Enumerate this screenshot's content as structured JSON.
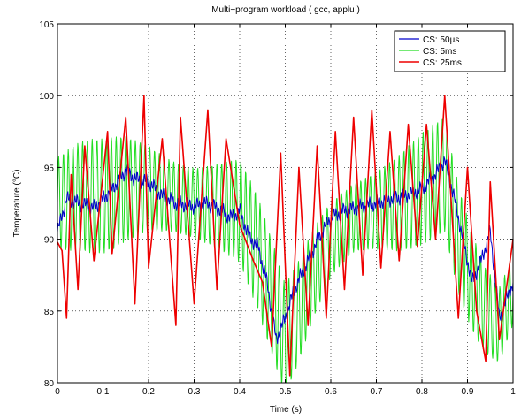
{
  "chart_data": {
    "type": "line",
    "title": "Multi−program workload ( gcc, applu )",
    "xlabel": "Time (s)",
    "ylabel": "Temperature (°C)",
    "xlim": [
      0,
      1
    ],
    "ylim": [
      80,
      105
    ],
    "x_ticks": [
      "0",
      "0.1",
      "0.2",
      "0.3",
      "0.4",
      "0.5",
      "0.6",
      "0.7",
      "0.8",
      "0.9",
      "1"
    ],
    "y_ticks": [
      "80",
      "85",
      "90",
      "95",
      "100",
      "105"
    ],
    "grid": "dotted",
    "legend_position": "top-right",
    "series": [
      {
        "name": "CS: 50µs",
        "color": "#0000cc",
        "x": [
          0,
          0.02,
          0.05,
          0.08,
          0.1,
          0.12,
          0.15,
          0.17,
          0.2,
          0.23,
          0.26,
          0.3,
          0.33,
          0.36,
          0.38,
          0.4,
          0.42,
          0.44,
          0.46,
          0.48,
          0.5,
          0.52,
          0.55,
          0.58,
          0.6,
          0.63,
          0.66,
          0.7,
          0.73,
          0.76,
          0.8,
          0.83,
          0.85,
          0.87,
          0.89,
          0.91,
          0.93,
          0.95,
          0.97,
          1.0
        ],
        "y": [
          90.5,
          92.8,
          92.5,
          92.2,
          92.8,
          93.5,
          94.8,
          94.2,
          94.0,
          93.0,
          92.5,
          92.3,
          92.5,
          92.0,
          91.5,
          92.0,
          90.2,
          89.5,
          87.0,
          83.0,
          84.5,
          86.5,
          88.5,
          90.5,
          91.5,
          92.0,
          92.2,
          92.5,
          92.8,
          93.0,
          93.5,
          94.5,
          95.5,
          93.0,
          90.0,
          87.0,
          88.5,
          90.5,
          84.5,
          87.0
        ]
      },
      {
        "name": "CS: 5ms",
        "color": "#22dd22",
        "x": [
          0,
          0.05,
          0.1,
          0.15,
          0.2,
          0.25,
          0.3,
          0.35,
          0.4,
          0.44,
          0.47,
          0.5,
          0.53,
          0.56,
          0.6,
          0.65,
          0.7,
          0.75,
          0.8,
          0.85,
          0.88,
          0.91,
          0.94,
          0.97,
          1.0
        ],
        "y": [
          92.5,
          93.0,
          93.0,
          93.5,
          93.5,
          93.0,
          92.5,
          92.3,
          92.0,
          89.0,
          86.0,
          83.0,
          85.0,
          87.5,
          90.0,
          91.5,
          92.0,
          92.5,
          93.5,
          94.5,
          90.0,
          87.0,
          85.0,
          84.0,
          86.5
        ],
        "oscillation_range": [
          85,
          97
        ]
      },
      {
        "name": "CS: 25ms",
        "color": "#ee0000",
        "x": [
          0,
          0.01,
          0.02,
          0.03,
          0.045,
          0.06,
          0.08,
          0.11,
          0.12,
          0.15,
          0.17,
          0.19,
          0.2,
          0.23,
          0.26,
          0.27,
          0.3,
          0.33,
          0.35,
          0.37,
          0.4,
          0.43,
          0.45,
          0.47,
          0.49,
          0.51,
          0.53,
          0.55,
          0.57,
          0.59,
          0.61,
          0.63,
          0.65,
          0.67,
          0.69,
          0.71,
          0.73,
          0.75,
          0.77,
          0.79,
          0.81,
          0.83,
          0.85,
          0.88,
          0.9,
          0.92,
          0.94,
          0.95,
          0.97,
          1.0
        ],
        "y": [
          89.8,
          89.2,
          84.5,
          94.5,
          86.5,
          96.5,
          88.5,
          97.5,
          89.0,
          98.5,
          85.5,
          100.0,
          88.0,
          97.0,
          84.0,
          98.5,
          85.5,
          99.0,
          86.5,
          97.0,
          91.0,
          88.5,
          87.0,
          82.5,
          96.0,
          80.5,
          95.0,
          84.0,
          96.5,
          84.5,
          97.5,
          86.5,
          98.5,
          87.5,
          99.0,
          88.0,
          97.5,
          88.5,
          98.0,
          89.5,
          98.0,
          90.0,
          100.0,
          84.5,
          95.0,
          85.0,
          81.5,
          94.0,
          83.0,
          90.0
        ]
      }
    ]
  }
}
